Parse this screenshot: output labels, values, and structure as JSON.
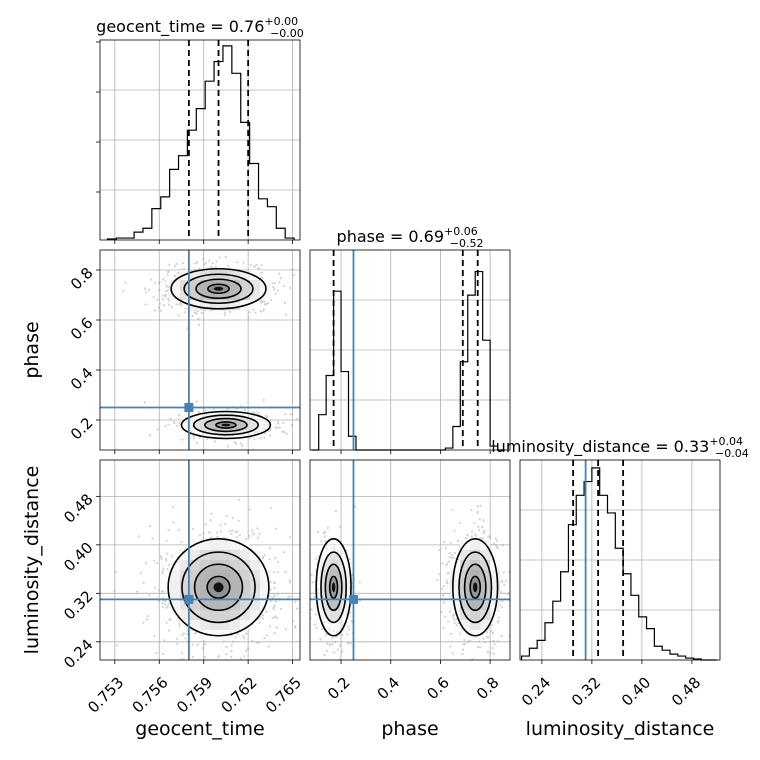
{
  "chart_data": {
    "type": "corner",
    "parameters": [
      "geocent_time",
      "phase",
      "luminosity_distance"
    ],
    "truth_color": "#4682b4",
    "truths": {
      "geocent_time": 0.758,
      "phase": 0.25,
      "luminosity_distance": 0.31
    },
    "panels": [
      {
        "kind": "hist1d",
        "param": "geocent_time",
        "title": {
          "main": "geocent_time = 0.76",
          "sup": "+0.00",
          "sub": "−0.00"
        },
        "xlim": [
          0.752,
          0.7655
        ],
        "quantiles": [
          0.758,
          0.76,
          0.762
        ],
        "histogram": {
          "bin_width": 0.0006,
          "bin_starts": [
            0.7525,
            0.7531,
            0.7537,
            0.7543,
            0.7549,
            0.7555,
            0.7561,
            0.7567,
            0.7573,
            0.7579,
            0.7585,
            0.7591,
            0.7597,
            0.7603,
            0.7609,
            0.7615,
            0.7621,
            0.7627,
            0.7633,
            0.7639,
            0.7645
          ],
          "counts": [
            0.005,
            0.01,
            0.01,
            0.04,
            0.06,
            0.16,
            0.22,
            0.36,
            0.43,
            0.56,
            0.67,
            0.81,
            0.91,
            0.99,
            0.85,
            0.6,
            0.39,
            0.21,
            0.17,
            0.06,
            0.01
          ]
        },
        "grid": true
      },
      {
        "kind": "hist1d",
        "param": "phase",
        "title": {
          "main": "phase = 0.69",
          "sup": "+0.06",
          "sub": "−0.52"
        },
        "xlim": [
          0.075,
          0.88
        ],
        "quantiles": [
          0.17,
          0.69,
          0.75
        ],
        "histogram": {
          "bin_width": 0.03,
          "bin_starts": [
            0.08,
            0.11,
            0.14,
            0.17,
            0.2,
            0.23,
            0.26,
            0.29,
            0.32,
            0.35,
            0.38,
            0.41,
            0.44,
            0.47,
            0.5,
            0.53,
            0.56,
            0.59,
            0.62,
            0.65,
            0.68,
            0.71,
            0.74,
            0.77,
            0.8,
            0.83
          ],
          "counts": [
            0,
            0.18,
            0.38,
            0.81,
            0.4,
            0.07,
            0,
            0,
            0,
            0,
            0,
            0,
            0,
            0,
            0,
            0,
            0,
            0,
            0.01,
            0.12,
            0.45,
            0.79,
            0.91,
            0.56,
            0.02,
            0
          ],
          "edge_values": [
            0.08,
            0.82
          ]
        },
        "grid": true
      },
      {
        "kind": "hist1d",
        "param": "luminosity_distance",
        "title": {
          "main": "luminosity_distance = 0.33",
          "sup": "+0.04",
          "sub": "−0.04"
        },
        "xlim": [
          0.205,
          0.525
        ],
        "quantiles": [
          0.29,
          0.33,
          0.37
        ],
        "histogram": {
          "bin_width": 0.0125,
          "bin_starts": [
            0.2075,
            0.22,
            0.2325,
            0.245,
            0.2575,
            0.27,
            0.2825,
            0.295,
            0.3075,
            0.32,
            0.3325,
            0.345,
            0.3575,
            0.37,
            0.3825,
            0.395,
            0.4075,
            0.42,
            0.4325,
            0.445,
            0.4575,
            0.47,
            0.4825,
            0.495,
            0.5075
          ],
          "counts": [
            0.02,
            0.06,
            0.1,
            0.19,
            0.3,
            0.45,
            0.69,
            0.84,
            0.91,
            0.98,
            0.84,
            0.75,
            0.57,
            0.44,
            0.33,
            0.22,
            0.16,
            0.07,
            0.05,
            0.03,
            0.02,
            0.01,
            0.005,
            0,
            0
          ]
        },
        "grid": true
      },
      {
        "kind": "hist2d",
        "x": "geocent_time",
        "y": "phase",
        "xlim": [
          0.752,
          0.7655
        ],
        "ylim": [
          0.08,
          0.88
        ],
        "blobs": [
          {
            "cx": 0.76,
            "cy": 0.725,
            "sx": 0.0016,
            "sy": 0.04,
            "weight": 0.7
          },
          {
            "cx": 0.7605,
            "cy": 0.18,
            "sx": 0.0015,
            "sy": 0.027,
            "weight": 0.3
          }
        ],
        "grid": true
      },
      {
        "kind": "hist2d",
        "x": "geocent_time",
        "y": "luminosity_distance",
        "xlim": [
          0.752,
          0.7655
        ],
        "ylim": [
          0.21,
          0.54
        ],
        "blobs": [
          {
            "cx": 0.76,
            "cy": 0.33,
            "sx": 0.0017,
            "sy": 0.04,
            "weight": 1.0
          }
        ],
        "grid": true
      },
      {
        "kind": "hist2d",
        "x": "phase",
        "y": "luminosity_distance",
        "xlim": [
          0.075,
          0.88
        ],
        "ylim": [
          0.21,
          0.54
        ],
        "blobs": [
          {
            "cx": 0.17,
            "cy": 0.33,
            "sx": 0.035,
            "sy": 0.04,
            "weight": 0.33
          },
          {
            "cx": 0.74,
            "cy": 0.33,
            "sx": 0.045,
            "sy": 0.04,
            "weight": 0.67
          }
        ],
        "grid": true
      }
    ],
    "ticks": {
      "geocent_time": {
        "values": [
          0.753,
          0.756,
          0.759,
          0.762,
          0.765
        ],
        "labels": [
          "0.753",
          "0.756",
          "0.759",
          "0.762",
          "0.765"
        ]
      },
      "phase": {
        "values": [
          0.2,
          0.4,
          0.6,
          0.8
        ],
        "labels": [
          "0.2",
          "0.4",
          "0.6",
          "0.8"
        ]
      },
      "luminosity_distance": {
        "values": [
          0.24,
          0.32,
          0.4,
          0.48
        ],
        "labels": [
          "0.24",
          "0.32",
          "0.40",
          "0.48"
        ]
      }
    },
    "axis_labels": {
      "x_geocent_time": "geocent_time",
      "x_phase": "phase",
      "x_luminosity_distance": "luminosity_distance",
      "y_phase": "phase",
      "y_luminosity_distance": "luminosity_distance"
    }
  }
}
